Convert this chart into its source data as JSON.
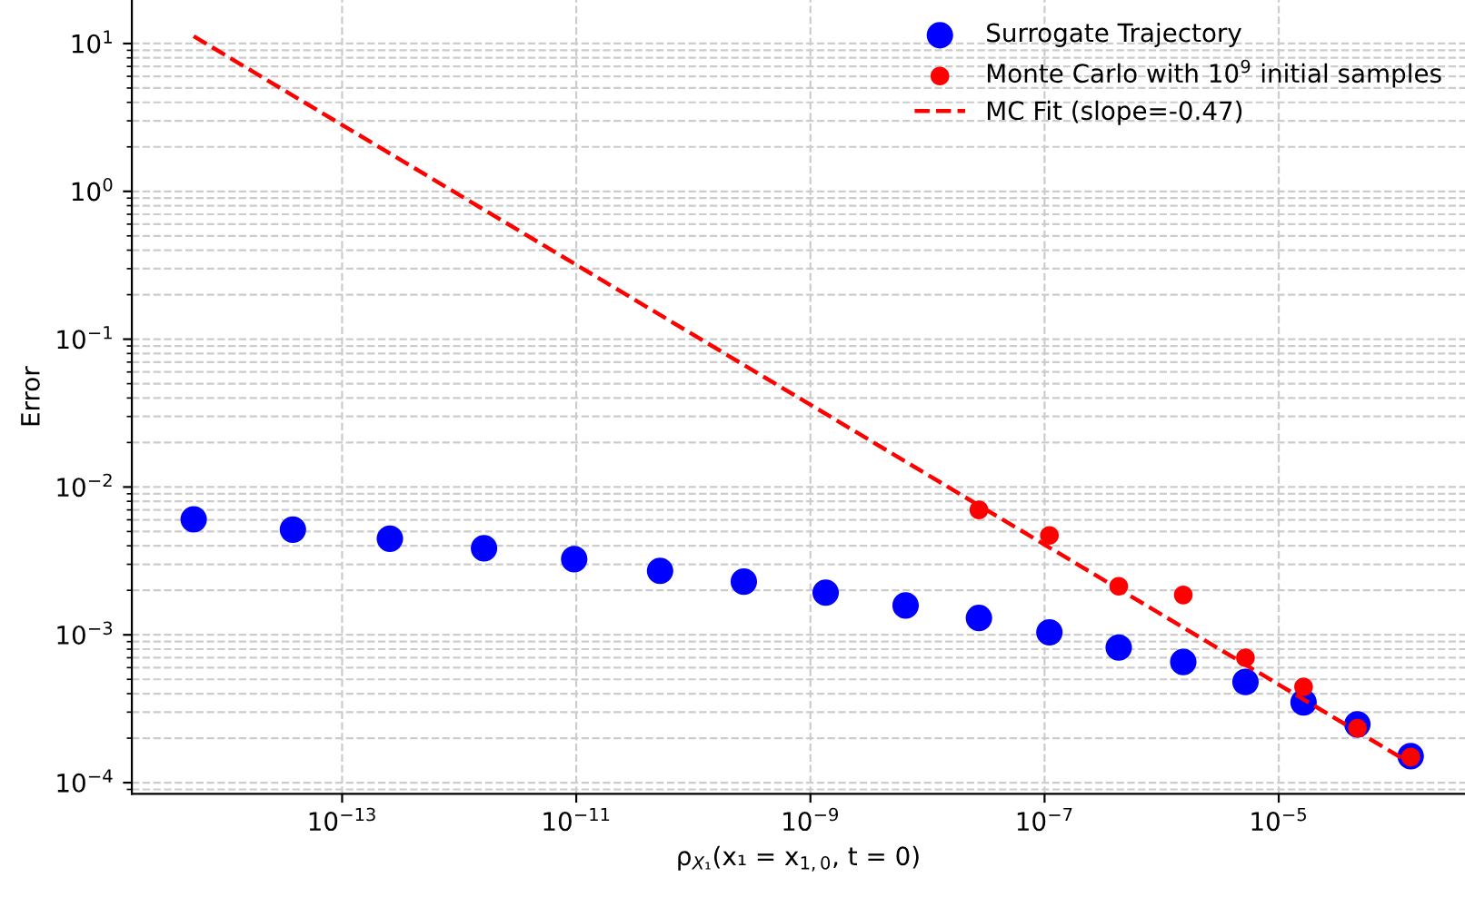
{
  "chart_data": {
    "type": "scatter",
    "xlabel": "ρ$_{X₁}$(x₁ = x$_{1,0}$, t = 0)",
    "ylabel": "Error",
    "log": "xy",
    "grid": true,
    "legend": "top right",
    "xlim": [
      1.6e-15,
      0.00039
    ],
    "ylim": [
      8.4e-05,
      19.7
    ],
    "xticks": [
      {
        "value": 1e-13,
        "label": "10$^{−13}$"
      },
      {
        "value": 1e-11,
        "label": "10$^{−11}$"
      },
      {
        "value": 1e-09,
        "label": "10$^{−9}$"
      },
      {
        "value": 1e-07,
        "label": "10$^{−7}$"
      },
      {
        "value": 1e-05,
        "label": "10$^{−5}$"
      }
    ],
    "yticks": [
      {
        "value": 0.0001,
        "label": "10$^{−4}$"
      },
      {
        "value": 0.001,
        "label": "10$^{−3}$"
      },
      {
        "value": 0.01,
        "label": "10$^{−2}$"
      },
      {
        "value": 0.1,
        "label": "10$^{−1}$"
      },
      {
        "value": 1,
        "label": "10$^{0}$"
      },
      {
        "value": 10,
        "label": "10$^{1}$"
      }
    ],
    "series": [
      {
        "name": "Surrogate Trajectory",
        "marker": "circle",
        "color": "#0000ff",
        "x": [
          5.4e-15,
          3.8e-14,
          2.56e-13,
          1.63e-12,
          9.6e-12,
          5.2e-11,
          2.7e-10,
          1.35e-09,
          6.5e-09,
          2.75e-08,
          1.1e-07,
          4.3e-07,
          1.53e-06,
          5.2e-06,
          1.63e-05,
          4.7e-05,
          0.000134
        ],
        "values": [
          0.00605,
          0.00515,
          0.00447,
          0.00385,
          0.00325,
          0.00271,
          0.00229,
          0.00193,
          0.00158,
          0.0013,
          0.00104,
          0.00082,
          0.000655,
          0.00048,
          0.000349,
          0.000248,
          0.000151
        ]
      },
      {
        "name": "Monte Carlo with 10$^{9}$ initial samples",
        "marker": "circle",
        "color": "#ff0000",
        "x": [
          2.75e-08,
          1.1e-07,
          4.3e-07,
          1.53e-06,
          5.2e-06,
          1.63e-05,
          4.7e-05,
          0.000134
        ],
        "values": [
          0.007,
          0.0047,
          0.00213,
          0.00186,
          0.0007,
          0.000445,
          0.000234,
          0.000149
        ]
      },
      {
        "name": "MC Fit (slope=-0.47)",
        "type": "line",
        "line_style": "dashed",
        "color": "#ff0000",
        "x": [
          5.4e-15,
          0.000134
        ],
        "values": [
          11.2,
          0.000135
        ]
      }
    ]
  }
}
